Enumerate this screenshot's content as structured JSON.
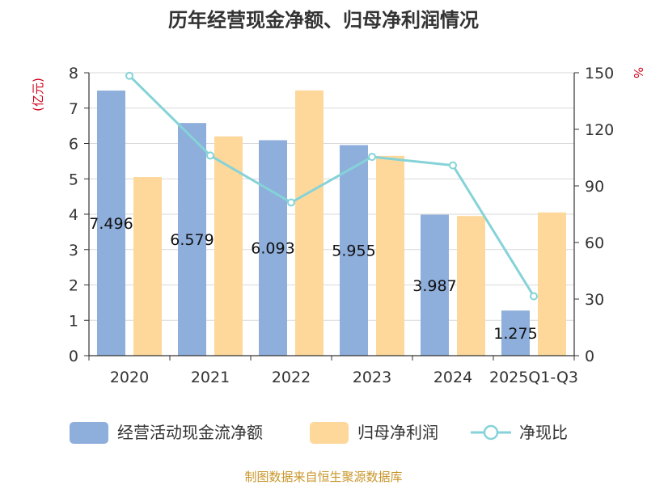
{
  "chart_data": {
    "type": "bar",
    "title": "历年经营现金净额、归母净利润情况",
    "categories": [
      "2020",
      "2021",
      "2022",
      "2023",
      "2024",
      "2025Q1-Q3"
    ],
    "series": [
      {
        "name": "经营活动现金流净额",
        "type": "bar",
        "axis": "left",
        "color": "#8eaedb",
        "values": [
          7.496,
          6.579,
          6.093,
          5.955,
          3.987,
          1.275
        ],
        "labels": [
          "7.496",
          "6.579",
          "6.093",
          "5.955",
          "3.987",
          "1.275"
        ]
      },
      {
        "name": "归母净利润",
        "type": "bar",
        "axis": "left",
        "color": "#fdd89a",
        "values": [
          5.05,
          6.2,
          7.5,
          5.65,
          3.95,
          4.05
        ]
      },
      {
        "name": "净现比",
        "type": "line",
        "axis": "right",
        "color": "#85d3d8",
        "values": [
          148.4,
          106.1,
          81.2,
          105.4,
          100.9,
          31.5
        ]
      }
    ],
    "yleft": {
      "unit": "(亿元)",
      "min": 0,
      "max": 8,
      "ticks": [
        "0",
        "1",
        "2",
        "3",
        "4",
        "5",
        "6",
        "7",
        "8"
      ]
    },
    "yright": {
      "unit": "%",
      "min": 0,
      "max": 150,
      "ticks": [
        "0",
        "30",
        "60",
        "90",
        "120",
        "150"
      ]
    },
    "grid": true,
    "legend_position": "bottom"
  },
  "source": "制图数据来自恒生聚源数据库"
}
